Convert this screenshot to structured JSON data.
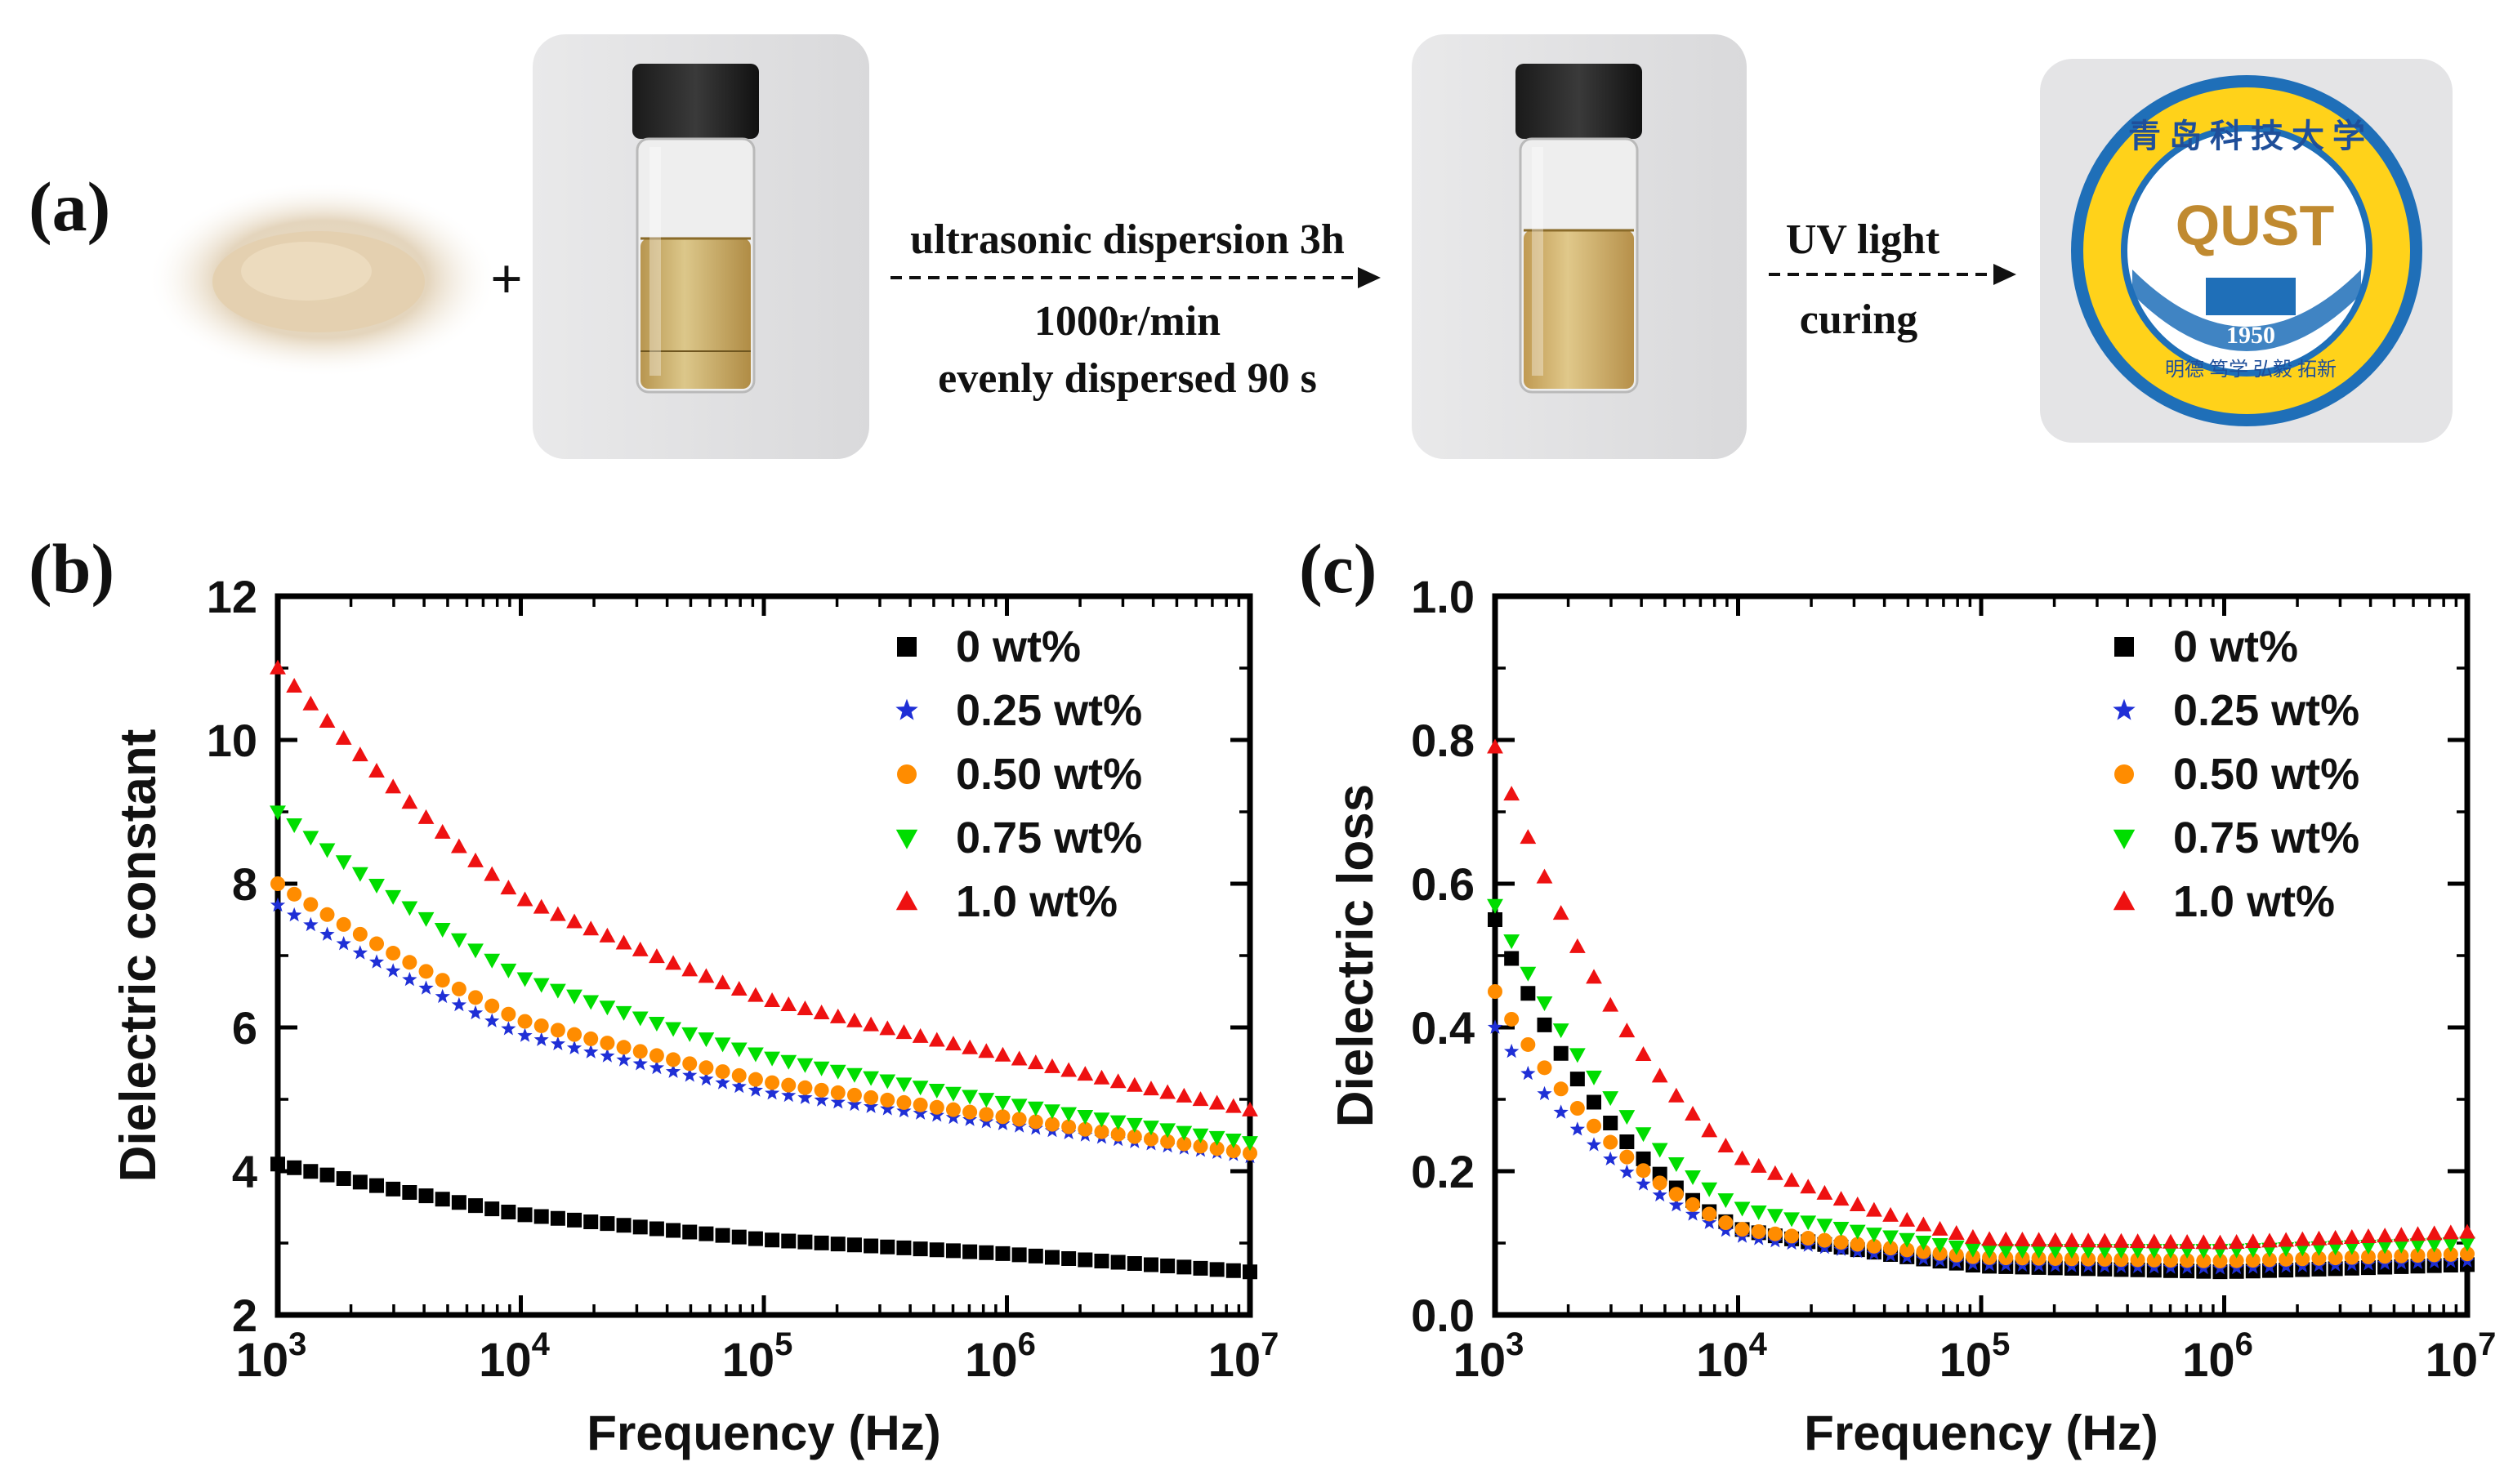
{
  "panels": {
    "a": "(a)",
    "b": "(b)",
    "c": "(c)"
  },
  "process": {
    "plus": "+",
    "step1": {
      "line1": "ultrasonic dispersion 3h",
      "line2": "1000r/min",
      "line3": "evenly dispersed  90 s"
    },
    "step2": {
      "line1": "UV light",
      "line2": "curing"
    },
    "logo": {
      "top_text": "青 岛 科 技 大 学",
      "monogram": "QUST",
      "year": "1950",
      "bottom_text": "明德  笃学  弘毅  拓新"
    }
  },
  "colors": {
    "0 wt%": "#000000",
    "0.25 wt%": "#1f2fd6",
    "0.50 wt%": "#ff8c00",
    "0.75 wt%": "#00dd00",
    "1.0 wt%": "#ee1111"
  },
  "chart_data": [
    {
      "panel": "b",
      "type": "scatter",
      "x_scale": "log",
      "xlim": [
        1000,
        10000000
      ],
      "ylim": [
        2,
        12
      ],
      "xlabel": "Frequency (Hz)",
      "ylabel": "Dielectric constant",
      "x_tick_labels": [
        "10^3",
        "10^4",
        "10^5",
        "10^6",
        "10^7"
      ],
      "y_ticks": [
        2,
        4,
        6,
        8,
        10,
        12
      ],
      "legend_position": "top-right",
      "points_per_series": 60,
      "series": [
        {
          "name": "0 wt%",
          "marker": "square",
          "x": [
            1000,
            10000,
            100000,
            1000000,
            10000000
          ],
          "y": [
            4.1,
            3.4,
            3.05,
            2.85,
            2.6
          ]
        },
        {
          "name": "0.25 wt%",
          "marker": "star",
          "x": [
            1000,
            10000,
            100000,
            1000000,
            10000000
          ],
          "y": [
            7.7,
            5.9,
            5.1,
            4.65,
            4.2
          ]
        },
        {
          "name": "0.50 wt%",
          "marker": "circle",
          "x": [
            1000,
            10000,
            100000,
            1000000,
            10000000
          ],
          "y": [
            8.0,
            6.1,
            5.25,
            4.75,
            4.25
          ]
        },
        {
          "name": "0.75 wt%",
          "marker": "triangle-down",
          "x": [
            1000,
            10000,
            100000,
            1000000,
            10000000
          ],
          "y": [
            9.0,
            6.7,
            5.6,
            4.95,
            4.4
          ]
        },
        {
          "name": "1.0 wt%",
          "marker": "triangle-up",
          "x": [
            1000,
            10000,
            100000,
            1000000,
            10000000
          ],
          "y": [
            11.0,
            7.8,
            6.4,
            5.6,
            4.85
          ]
        }
      ]
    },
    {
      "panel": "c",
      "type": "scatter",
      "x_scale": "log",
      "xlim": [
        1000,
        10000000
      ],
      "ylim": [
        0.0,
        1.0
      ],
      "xlabel": "Frequency (Hz)",
      "ylabel": "Dielectric loss",
      "x_tick_labels": [
        "10^3",
        "10^4",
        "10^5",
        "10^6",
        "10^7"
      ],
      "y_ticks": [
        0.0,
        0.2,
        0.4,
        0.6,
        0.8,
        1.0
      ],
      "legend_position": "top-right",
      "points_per_series": 60,
      "series": [
        {
          "name": "0 wt%",
          "marker": "square",
          "x": [
            1000,
            10000,
            100000,
            1000000,
            10000000
          ],
          "y": [
            0.55,
            0.12,
            0.068,
            0.06,
            0.07
          ]
        },
        {
          "name": "0.25 wt%",
          "marker": "star",
          "x": [
            1000,
            10000,
            100000,
            1000000,
            10000000
          ],
          "y": [
            0.4,
            0.11,
            0.07,
            0.065,
            0.075
          ]
        },
        {
          "name": "0.50 wt%",
          "marker": "circle",
          "x": [
            1000,
            10000,
            100000,
            1000000,
            10000000
          ],
          "y": [
            0.45,
            0.12,
            0.08,
            0.075,
            0.085
          ]
        },
        {
          "name": "0.75 wt%",
          "marker": "triangle-down",
          "x": [
            1000,
            10000,
            100000,
            1000000,
            10000000
          ],
          "y": [
            0.57,
            0.15,
            0.09,
            0.09,
            0.1
          ]
        },
        {
          "name": "1.0 wt%",
          "marker": "triangle-up",
          "x": [
            1000,
            10000,
            100000,
            1000000,
            10000000
          ],
          "y": [
            0.79,
            0.22,
            0.105,
            0.1,
            0.115
          ]
        }
      ]
    }
  ]
}
